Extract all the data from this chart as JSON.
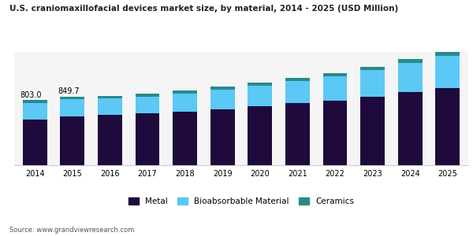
{
  "title": "U.S. craniomaxillofacial devices market size, by material, 2014 - 2025 (USD Million)",
  "years": [
    2014,
    2015,
    2016,
    2017,
    2018,
    2019,
    2020,
    2021,
    2022,
    2023,
    2024,
    2025
  ],
  "metal": [
    565,
    600,
    620,
    638,
    665,
    695,
    728,
    768,
    800,
    845,
    900,
    955
  ],
  "bioabsorbable": [
    205,
    215,
    205,
    210,
    220,
    240,
    255,
    275,
    300,
    330,
    365,
    400
  ],
  "ceramics": [
    33,
    35,
    35,
    36,
    37,
    38,
    39,
    40,
    42,
    44,
    47,
    50
  ],
  "label_2014": "803.0",
  "label_2015": "849.7",
  "metal_color": "#1e0a3c",
  "bioabsorbable_color": "#5bc8f5",
  "ceramics_color": "#2a8a8a",
  "bg_color": "#ffffff",
  "plot_bg_color": "#f5f5f5",
  "source_text": "Source: www.grandviewresearch.com",
  "ylim_max": 1400
}
